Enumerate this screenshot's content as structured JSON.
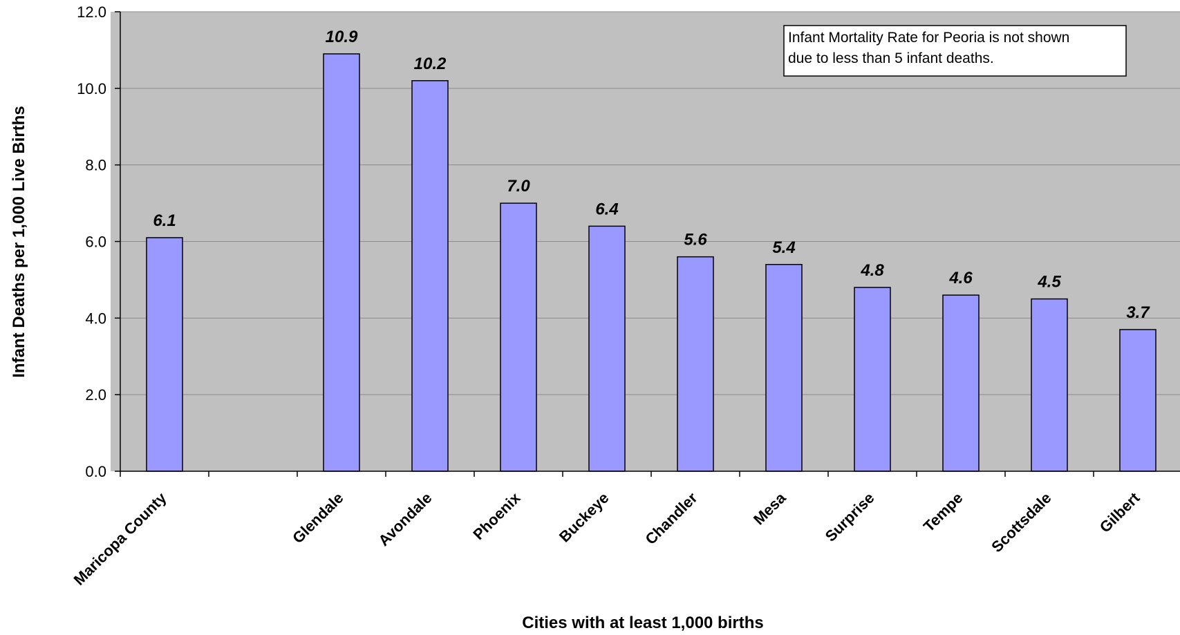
{
  "chart_data": {
    "type": "bar",
    "categories": [
      "Maricopa County",
      "",
      "Glendale",
      "Avondale",
      "Phoenix",
      "Buckeye",
      "Chandler",
      "Mesa",
      "Surprise",
      "Tempe",
      "Scottsdale",
      "Gilbert"
    ],
    "values": [
      6.1,
      null,
      10.9,
      10.2,
      7.0,
      6.4,
      5.6,
      5.4,
      4.8,
      4.6,
      4.5,
      3.7
    ],
    "data_labels": [
      "6.1",
      "",
      "10.9",
      "10.2",
      "7.0",
      "6.4",
      "5.6",
      "5.4",
      "4.8",
      "4.6",
      "4.5",
      "3.7"
    ],
    "xlabel": "Cities with at least 1,000 births",
    "ylabel": "Infant Deaths per 1,000 Live Births",
    "ylim": [
      0,
      12
    ],
    "yticks": [
      "0.0",
      "2.0",
      "4.0",
      "6.0",
      "8.0",
      "10.0",
      "12.0"
    ],
    "ytick_values": [
      0,
      2,
      4,
      6,
      8,
      10,
      12
    ],
    "grid": true,
    "annotation": {
      "line1": "Infant Mortality Rate for Peoria is not shown",
      "line2": "due to less than 5 infant deaths."
    },
    "colors": {
      "bar": "#9999ff",
      "plot_background": "#c0c0c0"
    }
  }
}
